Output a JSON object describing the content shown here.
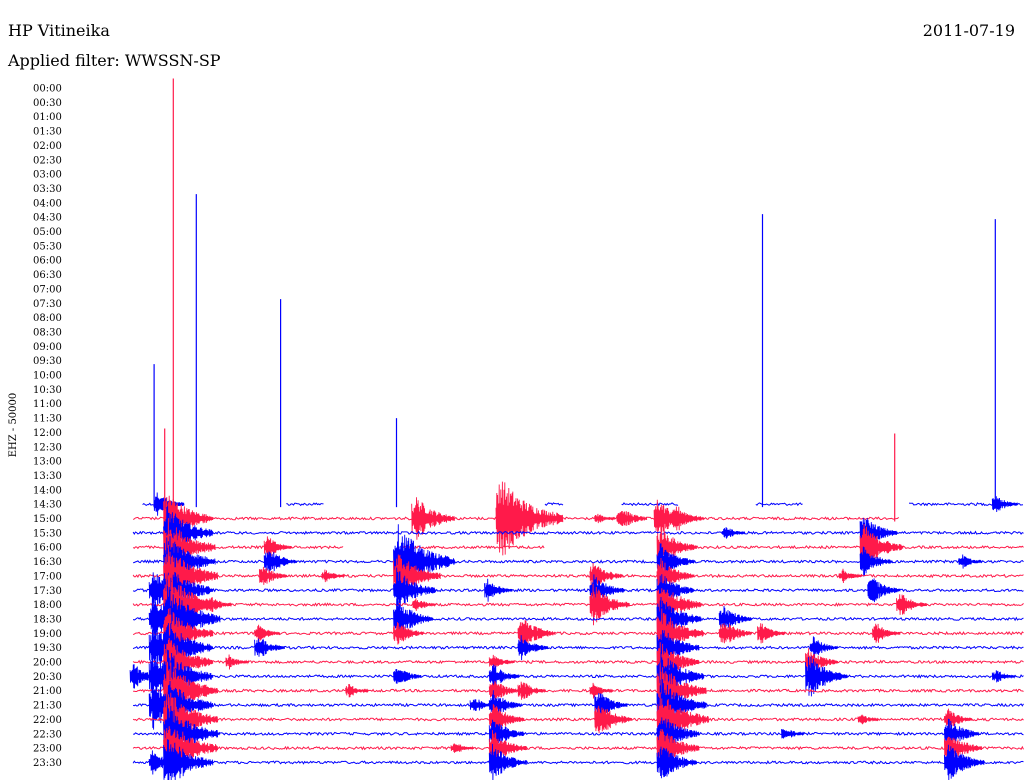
{
  "header": {
    "station": "HP Vitineika",
    "date": "2011-07-19",
    "filter": "Applied filter: WWSSN-SP"
  },
  "chart_data": {
    "type": "line",
    "title": "HP Vitineika",
    "ylabel": "EHZ - 50000",
    "colors": [
      "#ff1a4a",
      "#0000ff"
    ],
    "rows": [
      {
        "label": "00:00",
        "events": []
      },
      {
        "label": "00:30",
        "events": []
      },
      {
        "label": "01:00",
        "events": []
      },
      {
        "label": "01:30",
        "events": []
      },
      {
        "label": "02:00",
        "events": []
      },
      {
        "label": "02:30",
        "events": []
      },
      {
        "label": "03:00",
        "events": []
      },
      {
        "label": "03:30",
        "events": []
      },
      {
        "label": "04:00",
        "events": []
      },
      {
        "label": "04:30",
        "events": []
      },
      {
        "label": "05:00",
        "events": []
      },
      {
        "label": "05:30",
        "events": []
      },
      {
        "label": "06:00",
        "events": []
      },
      {
        "label": "06:30",
        "events": []
      },
      {
        "label": "07:00",
        "events": []
      },
      {
        "label": "07:30",
        "events": []
      },
      {
        "label": "08:00",
        "events": []
      },
      {
        "label": "08:30",
        "events": []
      },
      {
        "label": "09:00",
        "events": []
      },
      {
        "label": "09:30",
        "events": []
      },
      {
        "label": "10:00",
        "events": []
      },
      {
        "label": "10:30",
        "events": []
      },
      {
        "label": "11:00",
        "events": []
      },
      {
        "label": "11:30",
        "events": []
      },
      {
        "label": "12:00",
        "events": []
      },
      {
        "label": "12:30",
        "events": []
      },
      {
        "label": "13:00",
        "events": []
      },
      {
        "label": "13:30",
        "events": []
      },
      {
        "label": "14:00",
        "events": []
      },
      {
        "label": "14:30",
        "segments": [
          [
            0.08,
            0.11
          ],
          [
            0.23,
            0.27
          ],
          [
            0.5,
            0.52
          ],
          [
            0.58,
            0.64
          ],
          [
            0.72,
            0.77
          ],
          [
            0.88,
            1.0
          ]
        ],
        "events": [
          {
            "t": 0.095,
            "amp": 14
          },
          {
            "t": 0.1,
            "amp": 8
          },
          {
            "t": 0.97,
            "amp": 10
          },
          {
            "t": 0.092,
            "amp": 140
          },
          {
            "t": 0.136,
            "amp": 310
          },
          {
            "t": 0.224,
            "amp": 205
          },
          {
            "t": 0.727,
            "amp": 290
          },
          {
            "t": 0.97,
            "amp": 285
          },
          {
            "t": 0.345,
            "amp": 86
          }
        ]
      },
      {
        "label": "15:00",
        "segments": [
          [
            0.07,
            0.87
          ]
        ],
        "events": [
          {
            "t": 0.105,
            "amp": 30
          },
          {
            "t": 0.555,
            "amp": 6
          },
          {
            "t": 0.617,
            "amp": 22
          },
          {
            "t": 0.112,
            "amp": 440
          },
          {
            "t": 0.103,
            "amp": 90
          },
          {
            "t": 0.364,
            "amp": 25
          },
          {
            "t": 0.452,
            "amp": 45
          },
          {
            "t": 0.578,
            "amp": 14
          },
          {
            "t": 0.637,
            "amp": 15
          },
          {
            "t": 0.865,
            "amp": 85
          }
        ]
      },
      {
        "label": "15:30",
        "segments": [
          [
            0.07,
            1.0
          ]
        ],
        "events": [
          {
            "t": 0.105,
            "amp": 30
          },
          {
            "t": 0.688,
            "amp": 8
          },
          {
            "t": 0.832,
            "amp": 20
          }
        ]
      },
      {
        "label": "16:00",
        "segments": [
          [
            0.07,
            0.29
          ],
          [
            0.35,
            0.5
          ],
          [
            0.63,
            1.0
          ]
        ],
        "events": [
          {
            "t": 0.105,
            "amp": 32
          },
          {
            "t": 0.21,
            "amp": 12
          },
          {
            "t": 0.62,
            "amp": 22
          },
          {
            "t": 0.832,
            "amp": 25
          }
        ]
      },
      {
        "label": "16:30",
        "segments": [
          [
            0.07,
            1.0
          ]
        ],
        "events": [
          {
            "t": 0.105,
            "amp": 32
          },
          {
            "t": 0.21,
            "amp": 16
          },
          {
            "t": 0.345,
            "amp": 40
          },
          {
            "t": 0.62,
            "amp": 20
          },
          {
            "t": 0.832,
            "amp": 16
          },
          {
            "t": 0.935,
            "amp": 8
          }
        ]
      },
      {
        "label": "17:00",
        "segments": [
          [
            0.07,
            1.0
          ]
        ],
        "events": [
          {
            "t": 0.105,
            "amp": 34
          },
          {
            "t": 0.205,
            "amp": 12
          },
          {
            "t": 0.27,
            "amp": 8
          },
          {
            "t": 0.345,
            "amp": 28
          },
          {
            "t": 0.55,
            "amp": 16
          },
          {
            "t": 0.62,
            "amp": 20
          },
          {
            "t": 0.81,
            "amp": 8
          }
        ]
      },
      {
        "label": "17:30",
        "segments": [
          [
            0.07,
            1.0
          ]
        ],
        "events": [
          {
            "t": 0.09,
            "amp": 22
          },
          {
            "t": 0.105,
            "amp": 30
          },
          {
            "t": 0.345,
            "amp": 24
          },
          {
            "t": 0.44,
            "amp": 12
          },
          {
            "t": 0.55,
            "amp": 18
          },
          {
            "t": 0.62,
            "amp": 20
          },
          {
            "t": 0.84,
            "amp": 16
          }
        ]
      },
      {
        "label": "18:00",
        "segments": [
          [
            0.07,
            1.0
          ]
        ],
        "events": [
          {
            "t": 0.105,
            "amp": 36
          },
          {
            "t": 0.15,
            "amp": 10
          },
          {
            "t": 0.365,
            "amp": 8
          },
          {
            "t": 0.55,
            "amp": 22
          },
          {
            "t": 0.62,
            "amp": 26
          },
          {
            "t": 0.87,
            "amp": 14
          }
        ]
      },
      {
        "label": "18:30",
        "segments": [
          [
            0.07,
            1.0
          ]
        ],
        "events": [
          {
            "t": 0.09,
            "amp": 26
          },
          {
            "t": 0.105,
            "amp": 36
          },
          {
            "t": 0.345,
            "amp": 22
          },
          {
            "t": 0.62,
            "amp": 26
          },
          {
            "t": 0.685,
            "amp": 16
          }
        ]
      },
      {
        "label": "19:00",
        "segments": [
          [
            0.07,
            1.0
          ]
        ],
        "events": [
          {
            "t": 0.105,
            "amp": 30
          },
          {
            "t": 0.2,
            "amp": 10
          },
          {
            "t": 0.345,
            "amp": 14
          },
          {
            "t": 0.475,
            "amp": 20
          },
          {
            "t": 0.62,
            "amp": 28
          },
          {
            "t": 0.685,
            "amp": 16
          },
          {
            "t": 0.725,
            "amp": 12
          },
          {
            "t": 0.845,
            "amp": 12
          }
        ]
      },
      {
        "label": "19:30",
        "segments": [
          [
            0.07,
            1.0
          ]
        ],
        "events": [
          {
            "t": 0.09,
            "amp": 26
          },
          {
            "t": 0.105,
            "amp": 30
          },
          {
            "t": 0.2,
            "amp": 14
          },
          {
            "t": 0.475,
            "amp": 14
          },
          {
            "t": 0.62,
            "amp": 24
          },
          {
            "t": 0.78,
            "amp": 12
          }
        ]
      },
      {
        "label": "20:00",
        "segments": [
          [
            0.07,
            1.0
          ]
        ],
        "events": [
          {
            "t": 0.105,
            "amp": 30
          },
          {
            "t": 0.17,
            "amp": 8
          },
          {
            "t": 0.445,
            "amp": 10
          },
          {
            "t": 0.62,
            "amp": 24
          },
          {
            "t": 0.775,
            "amp": 16
          }
        ]
      },
      {
        "label": "20:30",
        "segments": [
          [
            0.07,
            1.0
          ]
        ],
        "events": [
          {
            "t": 0.07,
            "amp": 14
          },
          {
            "t": 0.09,
            "amp": 28
          },
          {
            "t": 0.105,
            "amp": 30
          },
          {
            "t": 0.345,
            "amp": 12
          },
          {
            "t": 0.445,
            "amp": 14
          },
          {
            "t": 0.62,
            "amp": 28
          },
          {
            "t": 0.775,
            "amp": 24
          },
          {
            "t": 0.97,
            "amp": 8
          }
        ]
      },
      {
        "label": "21:00",
        "segments": [
          [
            0.07,
            1.0
          ]
        ],
        "events": [
          {
            "t": 0.105,
            "amp": 34
          },
          {
            "t": 0.295,
            "amp": 8
          },
          {
            "t": 0.445,
            "amp": 14
          },
          {
            "t": 0.475,
            "amp": 12
          },
          {
            "t": 0.55,
            "amp": 8
          },
          {
            "t": 0.62,
            "amp": 30
          }
        ]
      },
      {
        "label": "21:30",
        "segments": [
          [
            0.07,
            1.0
          ]
        ],
        "events": [
          {
            "t": 0.09,
            "amp": 28
          },
          {
            "t": 0.105,
            "amp": 30
          },
          {
            "t": 0.425,
            "amp": 10
          },
          {
            "t": 0.445,
            "amp": 16
          },
          {
            "t": 0.555,
            "amp": 16
          },
          {
            "t": 0.62,
            "amp": 30
          }
        ]
      },
      {
        "label": "22:00",
        "segments": [
          [
            0.07,
            1.0
          ]
        ],
        "events": [
          {
            "t": 0.105,
            "amp": 34
          },
          {
            "t": 0.445,
            "amp": 18
          },
          {
            "t": 0.555,
            "amp": 20
          },
          {
            "t": 0.62,
            "amp": 32
          },
          {
            "t": 0.83,
            "amp": 6
          },
          {
            "t": 0.92,
            "amp": 12
          }
        ]
      },
      {
        "label": "22:30",
        "segments": [
          [
            0.07,
            1.0
          ]
        ],
        "events": [
          {
            "t": 0.105,
            "amp": 34
          },
          {
            "t": 0.14,
            "amp": 8
          },
          {
            "t": 0.445,
            "amp": 18
          },
          {
            "t": 0.62,
            "amp": 24
          },
          {
            "t": 0.75,
            "amp": 8
          },
          {
            "t": 0.92,
            "amp": 18
          }
        ]
      },
      {
        "label": "23:00",
        "segments": [
          [
            0.07,
            1.0
          ]
        ],
        "events": [
          {
            "t": 0.105,
            "amp": 34
          },
          {
            "t": 0.445,
            "amp": 20
          },
          {
            "t": 0.405,
            "amp": 8
          },
          {
            "t": 0.62,
            "amp": 24
          },
          {
            "t": 0.92,
            "amp": 20
          }
        ]
      },
      {
        "label": "23:30",
        "segments": [
          [
            0.07,
            1.0
          ]
        ],
        "events": [
          {
            "t": 0.09,
            "amp": 14
          },
          {
            "t": 0.105,
            "amp": 30
          },
          {
            "t": 0.445,
            "amp": 20
          },
          {
            "t": 0.62,
            "amp": 22
          },
          {
            "t": 0.92,
            "amp": 22
          }
        ]
      }
    ]
  }
}
